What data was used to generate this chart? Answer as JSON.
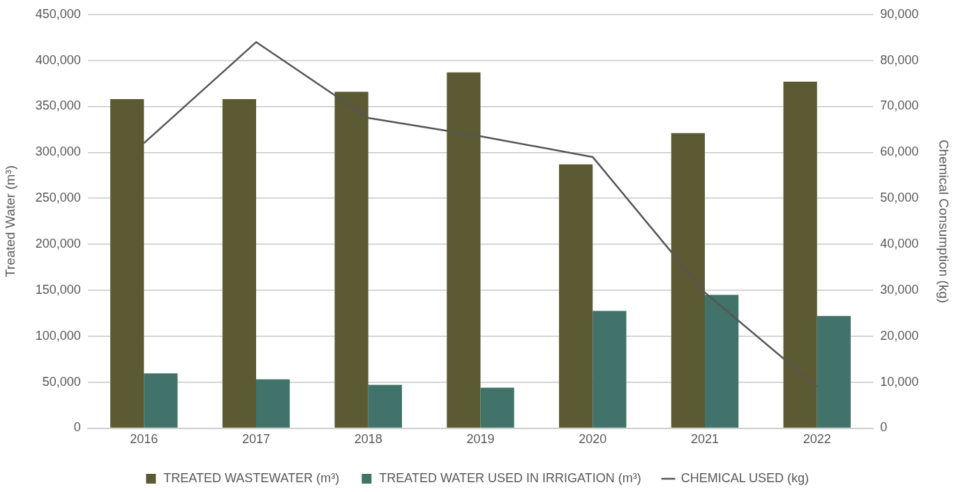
{
  "chart_data": {
    "type": "bar",
    "categories": [
      "2016",
      "2017",
      "2018",
      "2019",
      "2020",
      "2021",
      "2022"
    ],
    "ylabel": "Treated Water (m³)",
    "y2label": "Chemical Consumption (kg)",
    "ylim": [
      0,
      450000
    ],
    "yticks": [
      0,
      {
        "value": 50000,
        "label": "50,000"
      },
      {
        "value": 100000,
        "label": "100,000"
      },
      {
        "value": 150000,
        "label": "150,000"
      },
      {
        "value": 200000,
        "label": "200,000"
      },
      {
        "value": 250000,
        "label": "250,000"
      },
      {
        "value": 300000,
        "label": "300,000"
      },
      {
        "value": 350000,
        "label": "350,000"
      },
      {
        "value": 400000,
        "label": "400,000"
      },
      {
        "value": 450000,
        "label": "450,000"
      }
    ],
    "y2lim": [
      0,
      90000
    ],
    "y2ticks": [
      0,
      {
        "value": 10000,
        "label": "10,000"
      },
      {
        "value": 20000,
        "label": "20,000"
      },
      {
        "value": 30000,
        "label": "30,000"
      },
      {
        "value": 40000,
        "label": "40,000"
      },
      {
        "value": 50000,
        "label": "50,000"
      },
      {
        "value": 60000,
        "label": "60,000"
      },
      {
        "value": 70000,
        "label": "70,000"
      },
      {
        "value": 80000,
        "label": "80,000"
      },
      {
        "value": 90000,
        "label": "90,000"
      }
    ],
    "grid": "y",
    "legend": "bottom",
    "marker": "none",
    "line_style": "solid",
    "series": [
      {
        "name": "TREATED WASTEWATER (m³)",
        "color": "#5c5a32",
        "values": [
          358000,
          358000,
          366000,
          387000,
          287000,
          321000,
          377000
        ]
      },
      {
        "name": "TREATED WATER USED IN IRRIGATION (m³)",
        "color": "#41736a",
        "values": [
          59500,
          53000,
          47000,
          44000,
          127500,
          145000,
          122000
        ]
      },
      {
        "name": "CHEMICAL USED (kg)",
        "type": "line",
        "axis": "y2",
        "color": "#555555",
        "values": [
          62000,
          84000,
          67500,
          63500,
          59000,
          29500,
          9000
        ]
      }
    ]
  }
}
